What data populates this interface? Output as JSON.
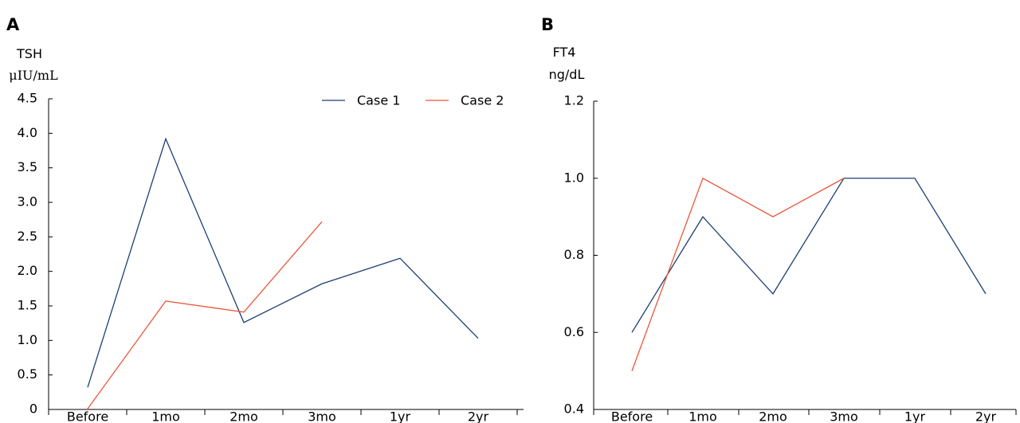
{
  "chart_data": [
    {
      "type": "line",
      "panel_label": "A",
      "ylabel": "TSH",
      "yunit": "μIU/mL",
      "categories": [
        "Before",
        "1mo",
        "2mo",
        "3mo",
        "1yr",
        "2yr"
      ],
      "ylim": [
        0,
        4.5
      ],
      "yticks": [
        "0",
        "0.5",
        "1.0",
        "1.5",
        "2.0",
        "2.5",
        "3.0",
        "3.5",
        "4.0",
        "4.5"
      ],
      "legend_position": "top-right",
      "series": [
        {
          "name": "Case 1",
          "color": "#1f3f73",
          "values": [
            0.32,
            3.92,
            1.26,
            1.82,
            2.19,
            1.03
          ]
        },
        {
          "name": "Case 2",
          "color": "#e8583b",
          "values": [
            0.01,
            1.57,
            1.41,
            2.72,
            null,
            null
          ]
        }
      ]
    },
    {
      "type": "line",
      "panel_label": "B",
      "ylabel": "FT4",
      "yunit": "ng/dL",
      "categories": [
        "Before",
        "1mo",
        "2mo",
        "3mo",
        "1yr",
        "2yr"
      ],
      "ylim": [
        0.4,
        1.2
      ],
      "yticks": [
        "0.4",
        "0.6",
        "0.8",
        "1.0",
        "1.2"
      ],
      "legend_position": "none",
      "series": [
        {
          "name": "Case 1",
          "color": "#1f3f73",
          "values": [
            0.6,
            0.9,
            0.7,
            1.0,
            1.0,
            0.7
          ]
        },
        {
          "name": "Case 2",
          "color": "#e8583b",
          "values": [
            0.5,
            1.0,
            0.9,
            1.0,
            null,
            null
          ]
        }
      ]
    }
  ]
}
